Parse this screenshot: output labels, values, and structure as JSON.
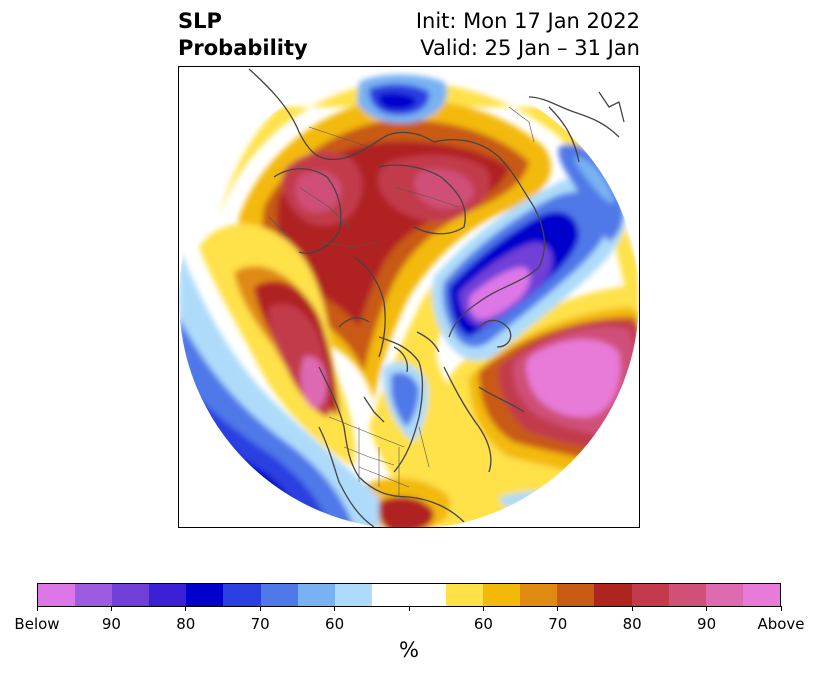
{
  "title": {
    "left_line1": "SLP",
    "left_line2": "Probability",
    "right_line1": "Init: Mon 17 Jan 2022",
    "right_line2": "Valid: 25 Jan – 31 Jan"
  },
  "colorbar": {
    "colors": [
      "#dd77e8",
      "#9d5ce0",
      "#6f3fd8",
      "#3a1fd4",
      "#0000cc",
      "#2a3fe0",
      "#4f78e8",
      "#78b2f2",
      "#aedbfa",
      "#ffffff",
      "#ffffff",
      "#ffe14a",
      "#f3b90a",
      "#e08a12",
      "#c85a14",
      "#b02420",
      "#c23a4c",
      "#d05078",
      "#dd6bb0",
      "#e87ad8"
    ],
    "tick_labels": [
      "Below",
      "90",
      "80",
      "70",
      "60",
      "",
      "60",
      "70",
      "80",
      "90",
      "Above"
    ],
    "unit_label": "%"
  },
  "map": {
    "colors": {
      "blue_light": "#aedbfa",
      "blue_mid": "#4f78e8",
      "blue_dark": "#0000cc",
      "purple": "#6f3fd8",
      "magenta_low": "#dd77e8",
      "yellow": "#ffe14a",
      "orange": "#f3b90a",
      "orange_dark": "#e08a12",
      "brown": "#c85a14",
      "red": "#b02420",
      "crimson": "#c23a4c",
      "pink": "#d05078",
      "magenta_high": "#e87ad8",
      "coastline": "#444444"
    }
  }
}
